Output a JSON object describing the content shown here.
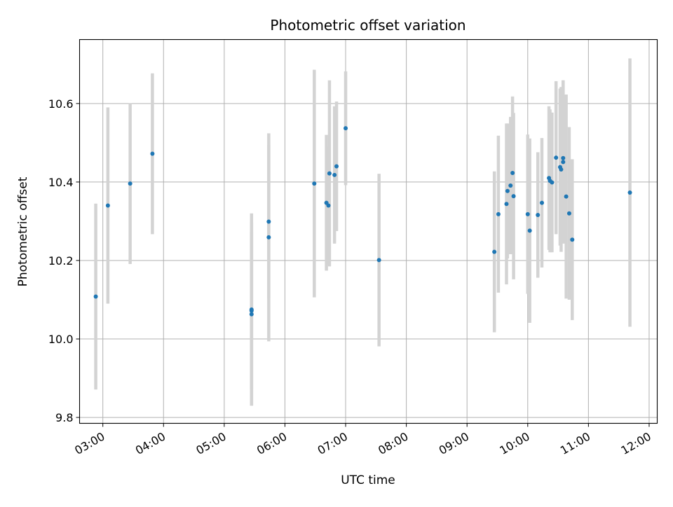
{
  "chart_data": {
    "type": "scatter",
    "title": "Photometric offset variation",
    "xlabel": "UTC time",
    "ylabel": "Photometric offset",
    "xlim": [
      "02:37",
      "12:08"
    ],
    "ylim": [
      9.785,
      10.763
    ],
    "x_ticks": [
      "03:00",
      "04:00",
      "05:00",
      "06:00",
      "07:00",
      "08:00",
      "09:00",
      "10:00",
      "11:00",
      "12:00"
    ],
    "y_ticks": [
      9.8,
      10.0,
      10.2,
      10.4,
      10.6
    ],
    "y_tick_labels": [
      "9.8",
      "10.0",
      "10.2",
      "10.4",
      "10.6"
    ],
    "grid": true,
    "marker_color": "#1f77b4",
    "errorbar_color": "#d3d3d3",
    "series": [
      {
        "points": [
          {
            "x": "02:53",
            "y": 10.108,
            "err": 0.237
          },
          {
            "x": "03:05",
            "y": 10.34,
            "err": 0.25
          },
          {
            "x": "03:27",
            "y": 10.396,
            "err": 0.205
          },
          {
            "x": "03:49",
            "y": 10.472,
            "err": 0.205
          },
          {
            "x": "05:27",
            "y": 10.063,
            "err": 0.233
          },
          {
            "x": "05:27",
            "y": 10.072,
            "err": 0.2
          },
          {
            "x": "05:27",
            "y": 10.075,
            "err": 0.245
          },
          {
            "x": "05:44",
            "y": 10.299,
            "err": 0.195
          },
          {
            "x": "05:44",
            "y": 10.259,
            "err": 0.265
          },
          {
            "x": "06:29",
            "y": 10.396,
            "err": 0.29
          },
          {
            "x": "06:41",
            "y": 10.347,
            "err": 0.173
          },
          {
            "x": "06:43",
            "y": 10.34,
            "err": 0.15
          },
          {
            "x": "06:44",
            "y": 10.422,
            "err": 0.237
          },
          {
            "x": "06:49",
            "y": 10.418,
            "err": 0.175
          },
          {
            "x": "06:51",
            "y": 10.44,
            "err": 0.165
          },
          {
            "x": "07:00",
            "y": 10.537,
            "err": 0.145
          },
          {
            "x": "07:33",
            "y": 10.201,
            "err": 0.22
          },
          {
            "x": "09:27",
            "y": 10.222,
            "err": 0.205
          },
          {
            "x": "09:31",
            "y": 10.318,
            "err": 0.2
          },
          {
            "x": "09:39",
            "y": 10.344,
            "err": 0.205
          },
          {
            "x": "09:40",
            "y": 10.377,
            "err": 0.172
          },
          {
            "x": "09:43",
            "y": 10.391,
            "err": 0.175
          },
          {
            "x": "09:45",
            "y": 10.423,
            "err": 0.195
          },
          {
            "x": "09:46",
            "y": 10.364,
            "err": 0.212
          },
          {
            "x": "10:00",
            "y": 10.318,
            "err": 0.203
          },
          {
            "x": "10:02",
            "y": 10.276,
            "err": 0.235
          },
          {
            "x": "10:10",
            "y": 10.316,
            "err": 0.16
          },
          {
            "x": "10:14",
            "y": 10.347,
            "err": 0.165
          },
          {
            "x": "10:21",
            "y": 10.41,
            "err": 0.183
          },
          {
            "x": "10:22",
            "y": 10.403,
            "err": 0.182
          },
          {
            "x": "10:24",
            "y": 10.399,
            "err": 0.178
          },
          {
            "x": "10:28",
            "y": 10.462,
            "err": 0.195
          },
          {
            "x": "10:32",
            "y": 10.438,
            "err": 0.2
          },
          {
            "x": "10:33",
            "y": 10.432,
            "err": 0.21
          },
          {
            "x": "10:35",
            "y": 10.451,
            "err": 0.208
          },
          {
            "x": "10:35",
            "y": 10.461,
            "err": 0.198
          },
          {
            "x": "10:38",
            "y": 10.363,
            "err": 0.26
          },
          {
            "x": "10:41",
            "y": 10.32,
            "err": 0.22
          },
          {
            "x": "10:44",
            "y": 10.253,
            "err": 0.205
          },
          {
            "x": "11:41",
            "y": 10.373,
            "err": 0.342
          }
        ]
      }
    ]
  }
}
